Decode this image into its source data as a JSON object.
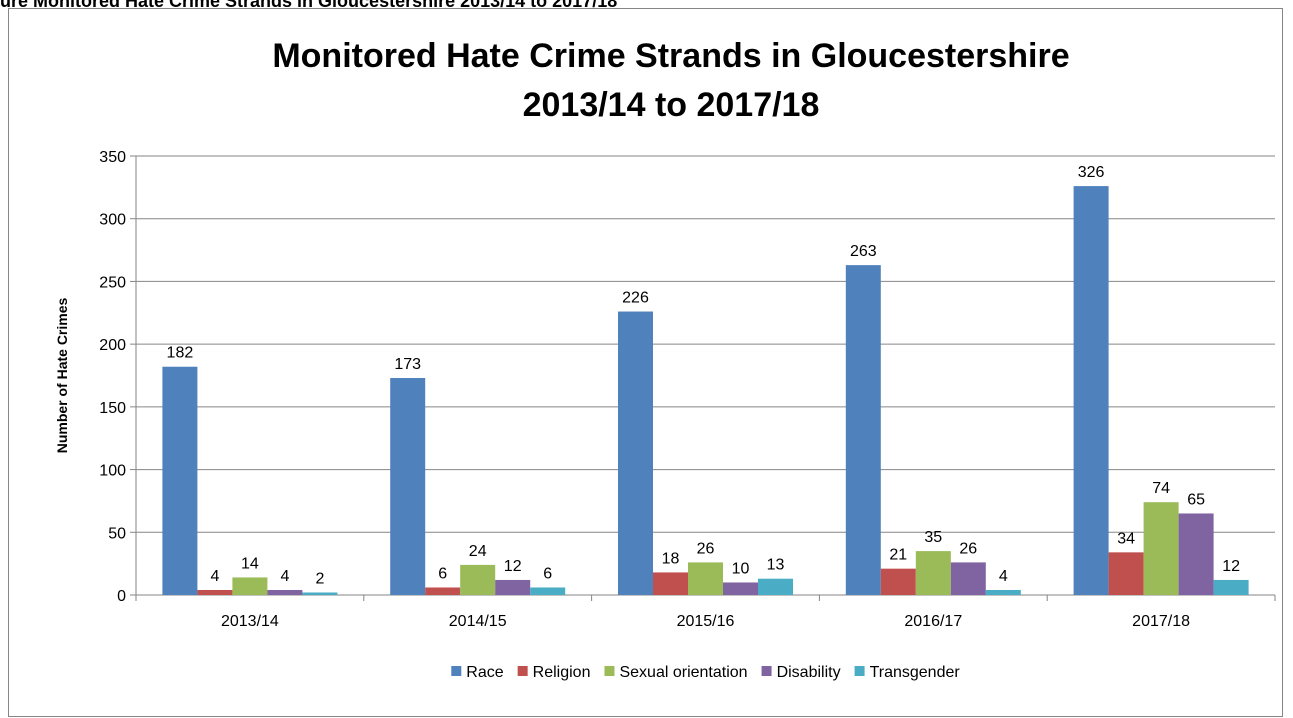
{
  "caption": "ure  Monitored Hate Crime Strands in Gloucestershire 2013/14 to 2017/18",
  "chart_data": {
    "type": "bar",
    "title_lines": [
      "Monitored Hate Crime Strands in Gloucestershire",
      "2013/14 to 2017/18"
    ],
    "xlabel": "",
    "ylabel": "Number of Hate Crimes",
    "ylim": [
      0,
      350
    ],
    "yticks": [
      0,
      50,
      100,
      150,
      200,
      250,
      300,
      350
    ],
    "grid": true,
    "legend_position": "bottom",
    "categories": [
      "2013/14",
      "2014/15",
      "2015/16",
      "2016/17",
      "2017/18"
    ],
    "series": [
      {
        "name": "Race",
        "color": "#4F81BD",
        "values": [
          182,
          173,
          226,
          263,
          326
        ]
      },
      {
        "name": "Religion",
        "color": "#C0504D",
        "values": [
          4,
          6,
          18,
          21,
          34
        ]
      },
      {
        "name": "Sexual orientation",
        "color": "#9BBB59",
        "values": [
          14,
          24,
          26,
          35,
          74
        ]
      },
      {
        "name": "Disability",
        "color": "#8064A2",
        "values": [
          4,
          12,
          10,
          26,
          65
        ]
      },
      {
        "name": "Transgender",
        "color": "#4BACC6",
        "values": [
          2,
          6,
          13,
          4,
          12
        ]
      }
    ]
  }
}
